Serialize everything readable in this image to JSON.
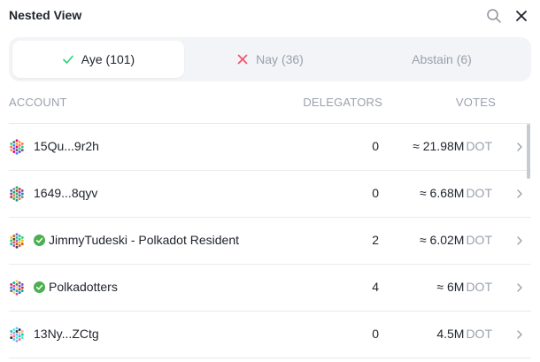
{
  "header": {
    "title": "Nested View"
  },
  "tabs": [
    {
      "label": "Aye (101)",
      "icon": "check-icon",
      "color": "#2ed47a",
      "active": true
    },
    {
      "label": "Nay (36)",
      "icon": "x-icon",
      "color": "#f0546a",
      "active": false
    },
    {
      "label": "Abstain (6)",
      "icon": "",
      "active": false
    }
  ],
  "columns": {
    "account": "ACCOUNT",
    "delegators": "DELEGATORS",
    "votes": "VOTES"
  },
  "rows": [
    {
      "account": "15Qu...9r2h",
      "verified": false,
      "delegators": "0",
      "votes": "≈ 21.98M",
      "unit": "DOT"
    },
    {
      "account": "1649...8qyv",
      "verified": false,
      "delegators": "0",
      "votes": "≈ 6.68M",
      "unit": "DOT"
    },
    {
      "account": "JimmyTudeski - Polkadot Resident",
      "verified": true,
      "delegators": "2",
      "votes": "≈ 6.02M",
      "unit": "DOT"
    },
    {
      "account": "Polkadotters",
      "verified": true,
      "delegators": "4",
      "votes": "≈ 6M",
      "unit": "DOT"
    },
    {
      "account": "13Ny...ZCtg",
      "verified": false,
      "delegators": "0",
      "votes": "4.5M",
      "unit": "DOT"
    }
  ],
  "colors": {
    "verified": "#4caf50",
    "unit": "#9aa1ac"
  }
}
